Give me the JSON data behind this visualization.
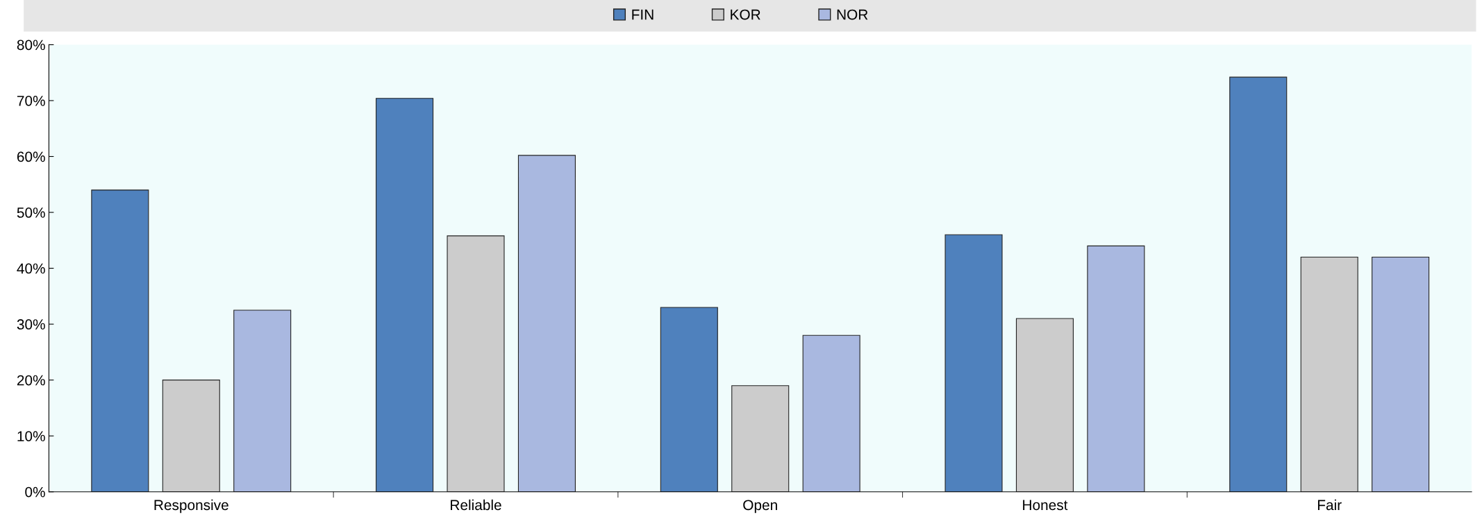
{
  "chart_data": {
    "type": "bar",
    "categories": [
      "Responsive",
      "Reliable",
      "Open",
      "Honest",
      "Fair"
    ],
    "series": [
      {
        "name": "FIN",
        "color": "#4f81bd",
        "values": [
          54,
          70.4,
          33,
          46,
          74.2
        ]
      },
      {
        "name": "KOR",
        "color": "#cccccc",
        "values": [
          20,
          45.8,
          19,
          31,
          42
        ]
      },
      {
        "name": "NOR",
        "color": "#a9b8e0",
        "values": [
          32.5,
          60.2,
          28,
          44,
          42
        ]
      }
    ],
    "ylim": [
      0,
      80
    ],
    "yticks": [
      {
        "value": 0,
        "label": "0%"
      },
      {
        "value": 10,
        "label": "10%"
      },
      {
        "value": 20,
        "label": "20%"
      },
      {
        "value": 30,
        "label": "30%"
      },
      {
        "value": 40,
        "label": "40%"
      },
      {
        "value": 50,
        "label": "50%"
      },
      {
        "value": 60,
        "label": "60%"
      },
      {
        "value": 70,
        "label": "70%"
      },
      {
        "value": 80,
        "label": "80%"
      }
    ],
    "legend": "top",
    "grid": false
  }
}
